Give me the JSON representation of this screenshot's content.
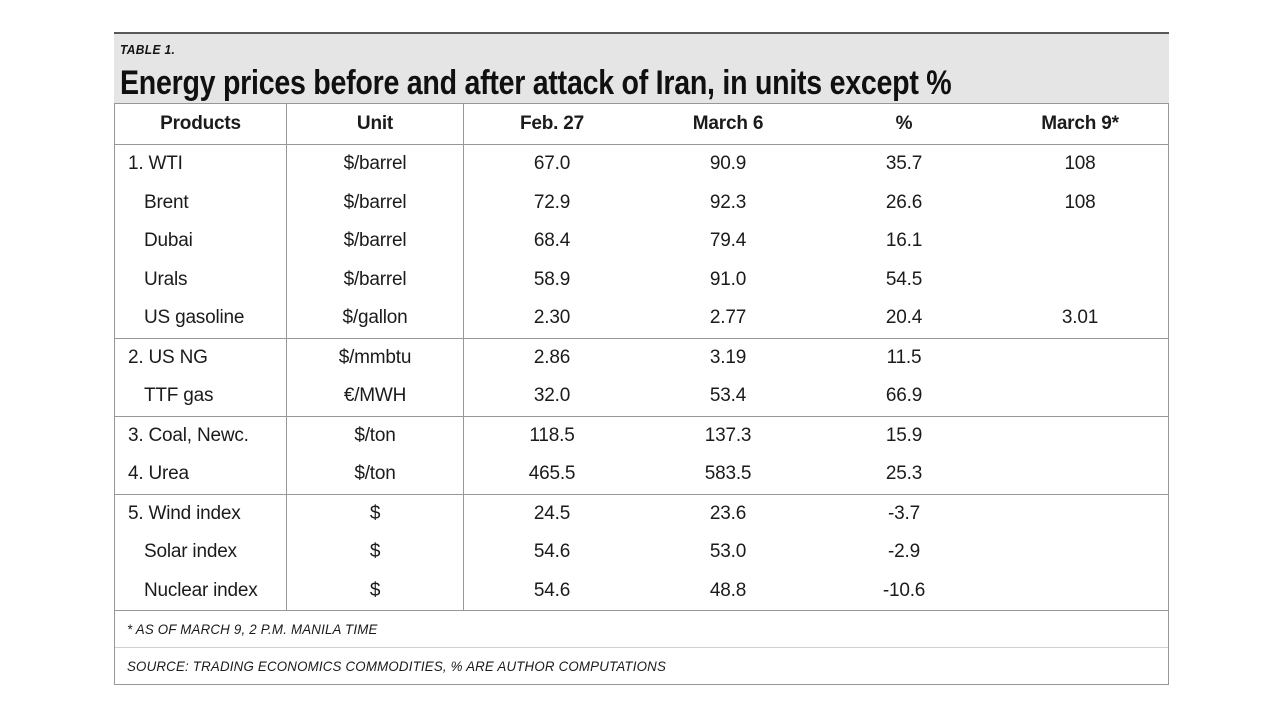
{
  "title_band": {
    "table_label": "TABLE 1.",
    "headline": "Energy prices before and after attack of Iran, in units except %"
  },
  "table": {
    "columns": [
      "Products",
      "Unit",
      "Feb. 27",
      "March 6",
      "%",
      "March 9*"
    ],
    "rows": [
      {
        "product": "1. WTI",
        "unit": "$/barrel",
        "feb27": "67.0",
        "mar6": "90.9",
        "pct": "35.7",
        "mar9": "108"
      },
      {
        "product": "Brent",
        "unit": "$/barrel",
        "feb27": "72.9",
        "mar6": "92.3",
        "pct": "26.6",
        "mar9": "108"
      },
      {
        "product": "Dubai",
        "unit": "$/barrel",
        "feb27": "68.4",
        "mar6": "79.4",
        "pct": "16.1",
        "mar9": ""
      },
      {
        "product": "Urals",
        "unit": "$/barrel",
        "feb27": "58.9",
        "mar6": "91.0",
        "pct": "54.5",
        "mar9": ""
      },
      {
        "product": "US gasoline",
        "unit": "$/gallon",
        "feb27": "2.30",
        "mar6": "2.77",
        "pct": "20.4",
        "mar9": "3.01"
      },
      {
        "product": "2. US NG",
        "unit": "$/mmbtu",
        "feb27": "2.86",
        "mar6": "3.19",
        "pct": "11.5",
        "mar9": ""
      },
      {
        "product": "TTF gas",
        "unit": "€/MWH",
        "feb27": "32.0",
        "mar6": "53.4",
        "pct": "66.9",
        "mar9": ""
      },
      {
        "product": "3. Coal, Newc.",
        "unit": "$/ton",
        "feb27": "118.5",
        "mar6": "137.3",
        "pct": "15.9",
        "mar9": ""
      },
      {
        "product": "4. Urea",
        "unit": "$/ton",
        "feb27": "465.5",
        "mar6": "583.5",
        "pct": "25.3",
        "mar9": ""
      },
      {
        "product": "5. Wind index",
        "unit": "$",
        "feb27": "24.5",
        "mar6": "23.6",
        "pct": "-3.7",
        "mar9": ""
      },
      {
        "product": "Solar index",
        "unit": "$",
        "feb27": "54.6",
        "mar6": "53.0",
        "pct": "-2.9",
        "mar9": ""
      },
      {
        "product": "Nuclear index",
        "unit": "$",
        "feb27": "54.6",
        "mar6": "48.8",
        "pct": "-10.6",
        "mar9": ""
      }
    ]
  },
  "footnotes": {
    "asterisk": "* AS OF MARCH 9, 2 P.M. MANILA TIME",
    "source": "SOURCE: TRADING ECONOMICS COMMODITIES, % ARE AUTHOR COMPUTATIONS"
  },
  "colors": {
    "title_band_bg": "#e5e5e6",
    "top_rule": "#58585a",
    "grid_line": "#97979a",
    "text": "#1b1b1b"
  },
  "chart_data": {
    "type": "table",
    "title": "Energy prices before and after attack of Iran, in units except %",
    "columns": [
      "Products",
      "Unit",
      "Feb. 27",
      "March 6",
      "%",
      "March 9*"
    ],
    "rows": [
      [
        "1. WTI",
        "$/barrel",
        67.0,
        90.9,
        35.7,
        108
      ],
      [
        "Brent",
        "$/barrel",
        72.9,
        92.3,
        26.6,
        108
      ],
      [
        "Dubai",
        "$/barrel",
        68.4,
        79.4,
        16.1,
        null
      ],
      [
        "Urals",
        "$/barrel",
        58.9,
        91.0,
        54.5,
        null
      ],
      [
        "US gasoline",
        "$/gallon",
        2.3,
        2.77,
        20.4,
        3.01
      ],
      [
        "2. US NG",
        "$/mmbtu",
        2.86,
        3.19,
        11.5,
        null
      ],
      [
        "TTF gas",
        "€/MWH",
        32.0,
        53.4,
        66.9,
        null
      ],
      [
        "3. Coal, Newc.",
        "$/ton",
        118.5,
        137.3,
        15.9,
        null
      ],
      [
        "4. Urea",
        "$/ton",
        465.5,
        583.5,
        25.3,
        null
      ],
      [
        "5. Wind index",
        "$",
        24.5,
        23.6,
        -3.7,
        null
      ],
      [
        "Solar index",
        "$",
        54.6,
        53.0,
        -2.9,
        null
      ],
      [
        "Nuclear index",
        "$",
        54.6,
        48.8,
        -10.6,
        null
      ]
    ],
    "footnotes": [
      "* AS OF MARCH 9, 2 P.M. MANILA TIME",
      "SOURCE: TRADING ECONOMICS COMMODITIES, % ARE AUTHOR COMPUTATIONS"
    ]
  }
}
